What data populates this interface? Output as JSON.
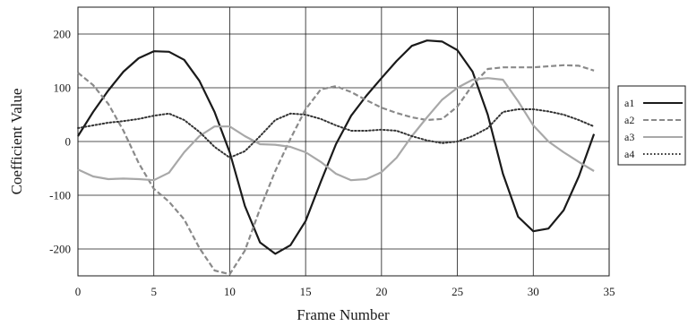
{
  "chart_data": {
    "type": "line",
    "xlabel": "Frame Number",
    "ylabel": "Coefficient Value",
    "xlim": [
      0,
      35
    ],
    "ylim": [
      -250,
      250
    ],
    "x_ticks": [
      0,
      5,
      10,
      15,
      20,
      25,
      30,
      35
    ],
    "y_ticks": [
      -200,
      -100,
      0,
      100,
      200
    ],
    "x_tick_labels": [
      "0",
      "5",
      "10",
      "15",
      "20",
      "25",
      "30",
      "35"
    ],
    "y_tick_labels": [
      "-200",
      "-100",
      "0",
      "100",
      "200"
    ],
    "grid": true,
    "legend_position": "right",
    "x": [
      0,
      1,
      2,
      3,
      4,
      5,
      6,
      7,
      8,
      9,
      10,
      11,
      12,
      13,
      14,
      15,
      16,
      17,
      18,
      19,
      20,
      21,
      22,
      23,
      24,
      25,
      26,
      27,
      28,
      29,
      30,
      31,
      32,
      33,
      34
    ],
    "series": [
      {
        "name": "a1",
        "color": "#1a1a1a",
        "dash": "solid",
        "values": [
          10,
          55,
          95,
          130,
          155,
          168,
          167,
          152,
          113,
          55,
          -20,
          -120,
          -188,
          -209,
          -193,
          -148,
          -75,
          -5,
          48,
          85,
          118,
          150,
          178,
          188,
          186,
          170,
          130,
          50,
          -60,
          -140,
          -167,
          -162,
          -128,
          -65,
          14
        ]
      },
      {
        "name": "a2",
        "color": "#8a8a8a",
        "dash": "dashed",
        "values": [
          128,
          105,
          70,
          20,
          -40,
          -88,
          -112,
          -145,
          -198,
          -240,
          -247,
          -203,
          -125,
          -55,
          5,
          60,
          97,
          103,
          92,
          77,
          63,
          53,
          45,
          40,
          42,
          65,
          105,
          135,
          138,
          138,
          138,
          140,
          142,
          141,
          132
        ]
      },
      {
        "name": "a3",
        "color": "#a8a8a8",
        "dash": "solid",
        "values": [
          -52,
          -65,
          -70,
          -69,
          -70,
          -72,
          -58,
          -20,
          10,
          28,
          28,
          10,
          -5,
          -6,
          -10,
          -20,
          -38,
          -60,
          -72,
          -70,
          -57,
          -30,
          10,
          45,
          78,
          100,
          115,
          118,
          115,
          75,
          30,
          0,
          -20,
          -38,
          -55
        ]
      },
      {
        "name": "a4",
        "color": "#333333",
        "dash": "dotted",
        "values": [
          25,
          30,
          35,
          38,
          42,
          48,
          52,
          40,
          18,
          -10,
          -30,
          -18,
          10,
          40,
          52,
          50,
          42,
          30,
          20,
          20,
          22,
          20,
          10,
          2,
          -3,
          0,
          10,
          25,
          55,
          60,
          60,
          56,
          50,
          40,
          28
        ]
      }
    ]
  }
}
